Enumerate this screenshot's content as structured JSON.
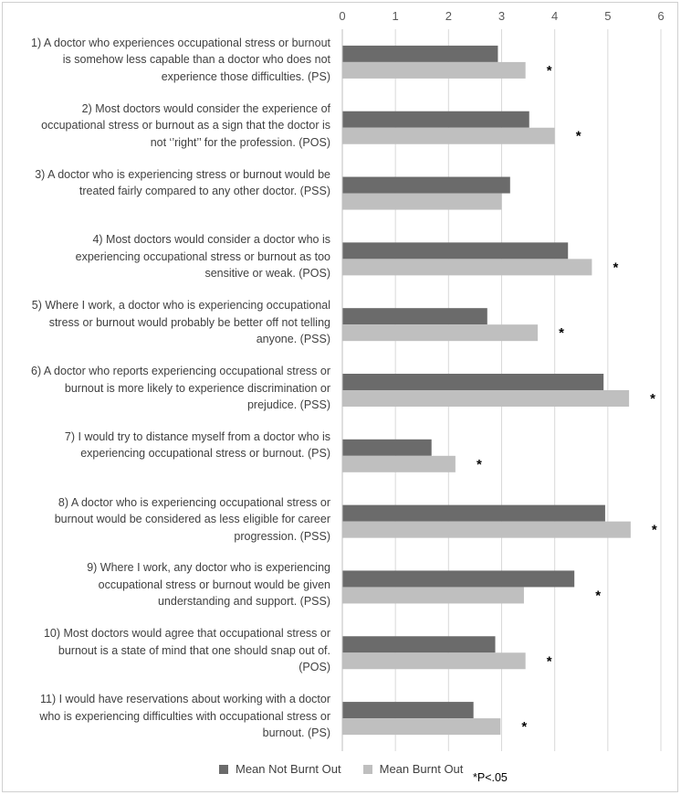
{
  "chart_data": {
    "type": "bar",
    "orientation": "horizontal",
    "xlim": [
      0,
      6
    ],
    "ticks": [
      "0",
      "1",
      "2",
      "3",
      "4",
      "5",
      "6"
    ],
    "grid": true,
    "categories": [
      "1) A doctor who experiences occupational stress or burnout is somehow less capable than a doctor who does not experience those difficulties. (PS)",
      "2) Most doctors would consider the experience of occupational stress or burnout as a sign that the doctor is not ‘’right’’ for the profession. (POS)",
      "3) A doctor who is experiencing stress or burnout would be treated fairly compared to any other doctor. (PSS)",
      "4) Most doctors would consider a doctor who is experiencing occupational stress or burnout as too sensitive or weak. (POS)",
      "5) Where I work, a doctor who is experiencing occupational stress or burnout would probably be better off not telling anyone. (PSS)",
      "6) A doctor who reports experiencing occupational stress or burnout is more likely to experience discrimination or prejudice. (PSS)",
      "7) I would try to distance myself from a doctor who is experiencing occupational stress or burnout. (PS)",
      "8) A doctor who is experiencing occupational stress or burnout would be considered as less eligible for career progression. (PSS)",
      "9) Where I work, any doctor who is experiencing occupational stress or burnout would be given understanding and support. (PSS)",
      "10) Most doctors would agree that occupational stress or burnout is a state of mind that one should snap out of. (POS)",
      "11) I would have reservations about working with a doctor who is experiencing difficulties with occupational stress or burnout. (PS)"
    ],
    "series": [
      {
        "name": "Mean Not Burnt Out",
        "color": "#6b6b6b",
        "values": [
          2.93,
          3.52,
          3.16,
          4.25,
          2.73,
          4.92,
          1.68,
          4.95,
          4.37,
          2.88,
          2.47
        ]
      },
      {
        "name": "Mean Burnt Out",
        "color": "#bfbfbf",
        "values": [
          3.45,
          4.0,
          3.0,
          4.7,
          3.68,
          5.4,
          2.13,
          5.43,
          3.42,
          3.45,
          2.98
        ]
      }
    ],
    "significance_marker": "*",
    "significant": [
      true,
      true,
      false,
      true,
      true,
      true,
      true,
      true,
      true,
      true,
      true
    ],
    "annotation": "*P<.05"
  }
}
